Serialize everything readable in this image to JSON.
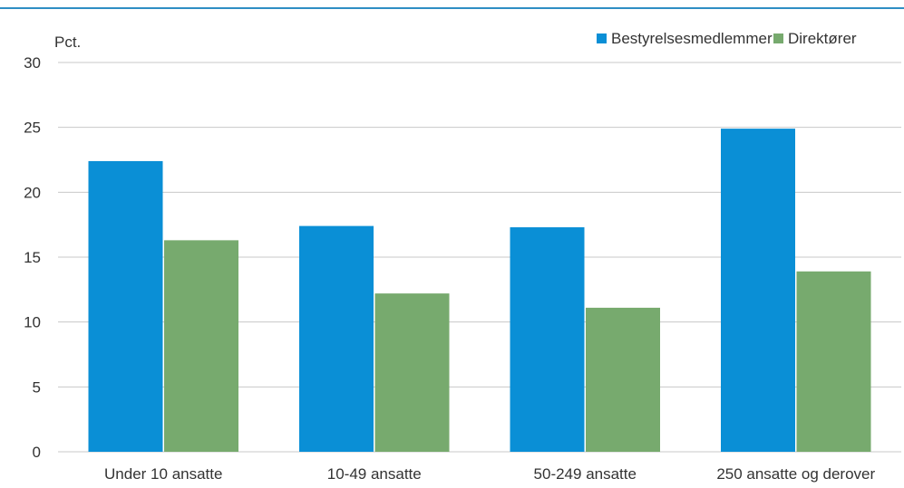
{
  "chart_data": {
    "type": "bar",
    "unit_label": "Pct.",
    "categories": [
      "Under 10 ansatte",
      "10-49 ansatte",
      "50-249 ansatte",
      "250 ansatte og derover"
    ],
    "series": [
      {
        "name": "Bestyrelsesmedlemmer",
        "values": [
          22.4,
          17.4,
          17.3,
          24.9
        ],
        "color": "#0a8fd6"
      },
      {
        "name": "Direktører",
        "values": [
          16.3,
          12.2,
          11.1,
          13.9
        ],
        "color": "#77aa6e"
      }
    ],
    "ylim": [
      0,
      30
    ],
    "yticks": [
      "0",
      "5",
      "10",
      "15",
      "20",
      "25",
      "30"
    ],
    "grid": true,
    "legend": "top-right",
    "top_rule_color": "#2e8ec4",
    "grid_color": "#c8c8c8"
  }
}
